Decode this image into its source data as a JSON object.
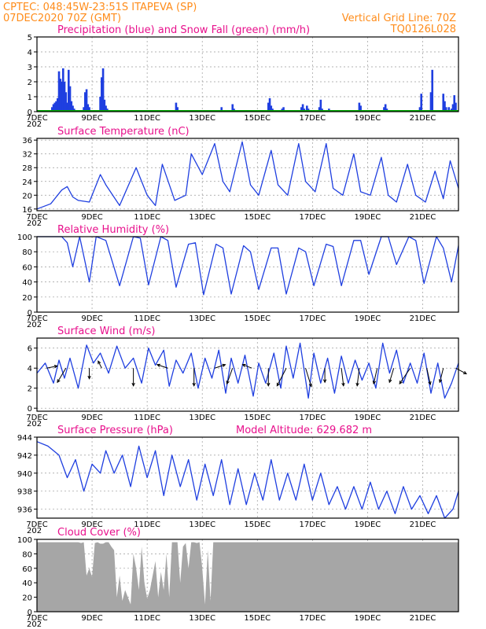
{
  "header": {
    "line1": "CPTEC:   048:45W-23:51S   ITAPEVA (SP)",
    "line2": "07DEC2020 70Z (GMT)",
    "grid_note": "Vertical Grid Line: 70Z",
    "code": "TQ0126L028"
  },
  "colors": {
    "header": "#ff8c1a",
    "title": "#e8108c",
    "line": "#1f3fe0",
    "precip": "#1f3fe0",
    "snow": "#00aa00",
    "cloud": "#a6a6a6",
    "wind_arrow": "#000000"
  },
  "x_axis": {
    "labels": [
      "7DEC",
      "9DEC",
      "11DEC",
      "13DEC",
      "15DEC",
      "17DEC",
      "19DEC",
      "21DEC"
    ],
    "cut_label": "202"
  },
  "chart_data": [
    {
      "type": "bar",
      "title": "Precipitation (blue) and Snow Fall (green) (mm/h)",
      "ylim": [
        0,
        5
      ],
      "yticks": [
        0,
        1,
        2,
        3,
        4,
        5
      ],
      "x_unit": "days since 07DEC2020 00Z",
      "series": [
        {
          "name": "Precipitation",
          "x": [
            0.55,
            0.6,
            0.65,
            0.7,
            0.75,
            0.8,
            0.85,
            0.9,
            0.95,
            1.0,
            1.05,
            1.1,
            1.15,
            1.2,
            1.25,
            1.3,
            1.35,
            1.7,
            1.75,
            1.8,
            1.85,
            1.9,
            1.95,
            2.0,
            2.3,
            2.35,
            2.4,
            2.45,
            2.5,
            2.55,
            5.05,
            5.1,
            6.7,
            6.75,
            7.1,
            7.15,
            7.5,
            8.4,
            8.45,
            8.5,
            8.55,
            8.9,
            8.95,
            9.0,
            9.6,
            9.65,
            9.7,
            9.75,
            9.8,
            9.85,
            10.25,
            10.3,
            10.35,
            10.6,
            10.65,
            11.7,
            11.75,
            11.8,
            12.6,
            12.65,
            12.7,
            13.9,
            13.95,
            14.3,
            14.35,
            14.75,
            14.8,
            14.85,
            14.9,
            14.95,
            15.0,
            15.05,
            15.1,
            15.15,
            15.2
          ],
          "values": [
            0.3,
            0.5,
            0.6,
            0.7,
            0.9,
            2.7,
            2.2,
            2.0,
            2.9,
            2.0,
            1.3,
            0.6,
            2.8,
            1.7,
            0.7,
            0.4,
            0.2,
            0.3,
            1.3,
            1.5,
            0.5,
            0.3,
            0.1,
            0.1,
            1.0,
            2.3,
            2.9,
            0.8,
            0.4,
            0.2,
            0.6,
            0.3,
            0.3,
            0.1,
            0.5,
            0.2,
            0.1,
            0.6,
            0.9,
            0.4,
            0.2,
            0.2,
            0.3,
            0.1,
            0.3,
            0.5,
            0.2,
            0.1,
            0.4,
            0.2,
            0.3,
            0.8,
            0.2,
            0.2,
            0.1,
            0.6,
            0.4,
            0.1,
            0.3,
            0.5,
            0.2,
            0.3,
            1.2,
            1.3,
            2.8,
            1.2,
            0.7,
            0.3,
            0.1,
            0.3,
            0.1,
            0.2,
            0.5,
            1.1,
            0.6
          ]
        },
        {
          "name": "Snow Fall",
          "x": [
            0,
            15.3
          ],
          "values": [
            0,
            0
          ]
        }
      ]
    },
    {
      "type": "line",
      "title": "Surface Temperature (nC)",
      "ylim": [
        15.5,
        36.5
      ],
      "yticks": [
        16,
        20,
        24,
        28,
        32,
        36
      ],
      "x_unit": "days since 07DEC2020 00Z",
      "series": [
        {
          "name": "Surface Temperature",
          "x": [
            0,
            0.5,
            0.9,
            1.1,
            1.3,
            1.5,
            1.9,
            2.3,
            2.5,
            3.0,
            3.6,
            4.0,
            4.3,
            4.55,
            5.0,
            5.4,
            5.6,
            6.0,
            6.45,
            6.75,
            7.0,
            7.45,
            7.75,
            8.05,
            8.5,
            8.75,
            9.1,
            9.5,
            9.75,
            10.1,
            10.5,
            10.75,
            11.1,
            11.5,
            11.75,
            12.1,
            12.5,
            12.75,
            13.05,
            13.45,
            13.75,
            14.1,
            14.45,
            14.75,
            15.0,
            15.3
          ],
          "values": [
            16,
            17.5,
            21.5,
            22.5,
            19.5,
            18.5,
            18,
            26,
            23,
            17,
            28,
            20,
            17,
            29,
            18.5,
            20,
            32,
            26,
            35,
            24,
            21,
            35.5,
            23,
            20,
            33,
            23,
            20,
            35,
            24,
            21,
            35,
            22,
            20,
            32,
            21,
            20,
            31,
            20,
            18,
            29,
            20,
            18,
            27,
            19,
            30,
            22
          ]
        }
      ]
    },
    {
      "type": "line",
      "title": "Relative Humidity (%)",
      "ylim": [
        0,
        100
      ],
      "yticks": [
        0,
        20,
        40,
        60,
        80,
        100
      ],
      "x_unit": "days since 07DEC2020 00Z",
      "series": [
        {
          "name": "Relative Humidity",
          "x": [
            0,
            0.9,
            1.1,
            1.3,
            1.55,
            1.9,
            2.15,
            2.5,
            3.0,
            3.5,
            3.75,
            4.05,
            4.5,
            4.75,
            5.05,
            5.5,
            5.75,
            6.05,
            6.5,
            6.75,
            7.05,
            7.5,
            7.75,
            8.05,
            8.5,
            8.75,
            9.05,
            9.5,
            9.75,
            10.05,
            10.5,
            10.75,
            11.05,
            11.5,
            11.75,
            12.05,
            12.5,
            12.75,
            13.05,
            13.5,
            13.75,
            14.05,
            14.5,
            14.75,
            15.05,
            15.3
          ],
          "values": [
            100,
            100,
            92,
            60,
            100,
            40,
            100,
            95,
            35,
            100,
            98,
            36,
            100,
            95,
            33,
            90,
            92,
            23,
            90,
            85,
            24,
            88,
            80,
            30,
            85,
            85,
            24,
            85,
            80,
            35,
            90,
            87,
            35,
            95,
            95,
            50,
            100,
            100,
            63,
            100,
            95,
            38,
            100,
            85,
            40,
            88
          ]
        }
      ]
    },
    {
      "type": "line",
      "title": "Surface Wind (m/s)",
      "ylim": [
        -0.3,
        7
      ],
      "yticks": [
        0,
        2,
        4,
        6
      ],
      "x_unit": "days since 07DEC2020 00Z",
      "series": [
        {
          "name": "Surface Wind",
          "x": [
            0,
            0.3,
            0.6,
            0.8,
            1.0,
            1.2,
            1.5,
            1.8,
            2.05,
            2.3,
            2.6,
            2.9,
            3.2,
            3.5,
            3.8,
            4.05,
            4.3,
            4.6,
            4.8,
            5.05,
            5.3,
            5.6,
            5.85,
            6.1,
            6.35,
            6.6,
            6.85,
            7.05,
            7.3,
            7.55,
            7.85,
            8.05,
            8.3,
            8.6,
            8.85,
            9.05,
            9.3,
            9.55,
            9.85,
            10.05,
            10.3,
            10.55,
            10.8,
            11.05,
            11.3,
            11.55,
            11.8,
            12.05,
            12.3,
            12.55,
            12.8,
            13.05,
            13.3,
            13.55,
            13.8,
            14.05,
            14.3,
            14.55,
            14.8,
            15.05,
            15.3
          ],
          "values": [
            3.5,
            4.5,
            2.5,
            4.8,
            3.0,
            5.0,
            2.0,
            6.3,
            4.5,
            5.5,
            3.5,
            6.2,
            4.0,
            5.0,
            2.5,
            6.0,
            4.3,
            5.8,
            2.2,
            4.8,
            3.5,
            5.5,
            2.0,
            5.0,
            3.0,
            5.8,
            1.5,
            5.0,
            2.5,
            5.3,
            1.2,
            4.5,
            2.5,
            5.5,
            2.0,
            6.2,
            3.0,
            6.5,
            1.0,
            5.5,
            2.5,
            5.0,
            1.5,
            5.2,
            2.5,
            4.8,
            2.8,
            4.5,
            2.0,
            6.5,
            3.5,
            5.8,
            2.5,
            4.5,
            2.5,
            5.5,
            1.5,
            4.5,
            1.0,
            2.5,
            4.5
          ]
        }
      ],
      "arrows": {
        "x": [
          0.35,
          1.05,
          1.9,
          2.35,
          3.5,
          4.75,
          5.7,
          6.45,
          7.1,
          7.8,
          8.4,
          9.05,
          9.75,
          10.45,
          11.05,
          11.7,
          12.35,
          12.95,
          13.55,
          14.15,
          14.75,
          15.2
        ],
        "u": [
          1.5,
          -1.2,
          0,
          -0.5,
          0,
          -1.5,
          0,
          1.5,
          -0.8,
          -1.3,
          0,
          -1.3,
          0.8,
          0,
          0.3,
          -0.3,
          -0.5,
          -0.6,
          -1.5,
          0.5,
          -0.5,
          1.5
        ],
        "v": [
          0.3,
          -2.0,
          -1.5,
          1.0,
          -2.5,
          0.5,
          -2.5,
          0.5,
          -2.2,
          0.5,
          -2.5,
          -2.5,
          -2.6,
          -2.0,
          -2.5,
          -2.5,
          -2.2,
          -2.0,
          -2.2,
          -2.3,
          -2.0,
          -0.8
        ]
      }
    },
    {
      "type": "line",
      "title": "Surface Pressure (hPa)",
      "annotation": "Model Altitude: 629.682  m",
      "ylim": [
        935,
        944
      ],
      "yticks": [
        936,
        938,
        940,
        942,
        944
      ],
      "x_unit": "days since 07DEC2020 00Z",
      "series": [
        {
          "name": "Surface Pressure",
          "x": [
            0,
            0.4,
            0.8,
            1.1,
            1.4,
            1.7,
            2.0,
            2.3,
            2.5,
            2.8,
            3.1,
            3.4,
            3.7,
            4.0,
            4.3,
            4.6,
            4.9,
            5.2,
            5.5,
            5.8,
            6.1,
            6.4,
            6.7,
            7.0,
            7.3,
            7.6,
            7.9,
            8.2,
            8.5,
            8.8,
            9.1,
            9.4,
            9.7,
            10.0,
            10.3,
            10.6,
            10.9,
            11.2,
            11.5,
            11.8,
            12.1,
            12.4,
            12.7,
            13.0,
            13.3,
            13.6,
            13.9,
            14.2,
            14.5,
            14.8,
            15.1,
            15.3
          ],
          "values": [
            943.5,
            943,
            942,
            939.5,
            941.5,
            938,
            941,
            940,
            942.5,
            940,
            942,
            938.5,
            943,
            939.5,
            942.5,
            937.5,
            942,
            938.5,
            941.5,
            937,
            941,
            937.5,
            941.5,
            936.5,
            940.5,
            936.5,
            940,
            937,
            941.5,
            937,
            940,
            937,
            941,
            937,
            940,
            936.5,
            938.5,
            936,
            938.5,
            936,
            939,
            936,
            938,
            935.5,
            938.5,
            936,
            937.5,
            935.5,
            937.5,
            935,
            936,
            938
          ]
        }
      ]
    },
    {
      "type": "area",
      "title": "Cloud Cover (%)",
      "ylim": [
        0,
        100
      ],
      "yticks": [
        0,
        20,
        40,
        60,
        80,
        100
      ],
      "x_unit": "days since 07DEC2020 00Z",
      "series": [
        {
          "name": "Cloud Cover",
          "x": [
            0,
            1.5,
            1.6,
            1.7,
            1.8,
            1.9,
            2.0,
            2.1,
            2.2,
            2.3,
            2.4,
            2.5,
            2.6,
            2.7,
            2.8,
            2.9,
            3.0,
            3.1,
            3.2,
            3.3,
            3.4,
            3.5,
            3.6,
            3.7,
            3.8,
            3.9,
            4.0,
            4.1,
            4.2,
            4.3,
            4.4,
            4.5,
            4.6,
            4.7,
            4.8,
            4.9,
            5.0,
            5.1,
            5.2,
            5.3,
            5.4,
            5.5,
            5.6,
            5.7,
            5.8,
            5.9,
            6.0,
            6.1,
            6.2,
            6.3,
            6.4,
            6.5,
            6.6,
            6.7,
            6.8,
            15.3
          ],
          "values": [
            96,
            96,
            95,
            96,
            50,
            60,
            48,
            95,
            96,
            94,
            94,
            96,
            96,
            90,
            85,
            20,
            50,
            15,
            30,
            20,
            10,
            80,
            60,
            30,
            90,
            40,
            18,
            30,
            50,
            70,
            20,
            55,
            30,
            80,
            20,
            96,
            96,
            96,
            40,
            90,
            95,
            60,
            96,
            96,
            95,
            96,
            60,
            10,
            85,
            15,
            96,
            96,
            96,
            96,
            96,
            96
          ]
        }
      ]
    }
  ]
}
